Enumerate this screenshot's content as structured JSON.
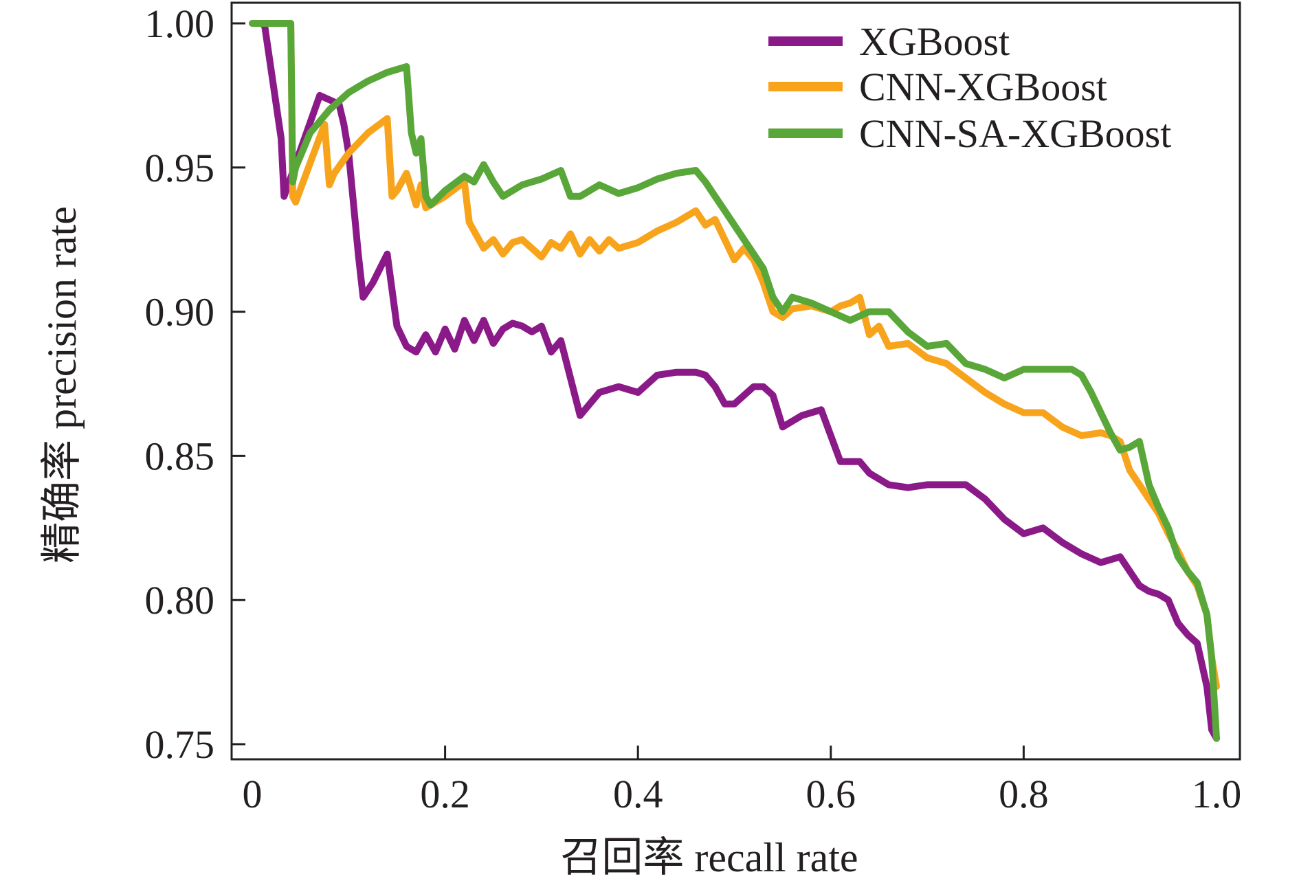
{
  "chart_data": {
    "type": "line",
    "title": "",
    "xlabel": "召回率 recall rate",
    "ylabel": "精确率 precision rate",
    "xlim": [
      0,
      1.0
    ],
    "ylim": [
      0.75,
      1.0
    ],
    "xticks": [
      0,
      0.2,
      0.4,
      0.6,
      0.8,
      1.0
    ],
    "xtick_labels": [
      "0",
      "0.2",
      "0.4",
      "0.6",
      "0.8",
      "1.0"
    ],
    "yticks": [
      0.75,
      0.8,
      0.85,
      0.9,
      0.95,
      1.0
    ],
    "ytick_labels": [
      "0.75",
      "0.80",
      "0.85",
      "0.90",
      "0.95",
      "1.00"
    ],
    "grid": false,
    "legend_position": "top-right",
    "series": [
      {
        "name": "XGBoost",
        "color": "#8b1a89",
        "x": [
          0.01,
          0.013,
          0.03,
          0.033,
          0.07,
          0.09,
          0.095,
          0.1,
          0.11,
          0.115,
          0.125,
          0.14,
          0.15,
          0.16,
          0.17,
          0.18,
          0.19,
          0.2,
          0.21,
          0.22,
          0.23,
          0.24,
          0.25,
          0.26,
          0.27,
          0.28,
          0.29,
          0.3,
          0.31,
          0.32,
          0.33,
          0.34,
          0.35,
          0.36,
          0.38,
          0.4,
          0.42,
          0.44,
          0.46,
          0.47,
          0.48,
          0.49,
          0.5,
          0.52,
          0.53,
          0.54,
          0.55,
          0.56,
          0.57,
          0.59,
          0.6,
          0.61,
          0.63,
          0.64,
          0.66,
          0.68,
          0.7,
          0.72,
          0.74,
          0.76,
          0.78,
          0.8,
          0.82,
          0.84,
          0.86,
          0.88,
          0.9,
          0.91,
          0.92,
          0.93,
          0.94,
          0.95,
          0.96,
          0.97,
          0.98,
          0.99,
          0.995,
          1.0
        ],
        "y": [
          1.0,
          0.999,
          0.96,
          0.94,
          0.975,
          0.972,
          0.965,
          0.955,
          0.92,
          0.905,
          0.91,
          0.92,
          0.895,
          0.888,
          0.886,
          0.892,
          0.886,
          0.894,
          0.887,
          0.897,
          0.89,
          0.897,
          0.889,
          0.894,
          0.896,
          0.895,
          0.893,
          0.895,
          0.886,
          0.89,
          0.877,
          0.864,
          0.868,
          0.872,
          0.874,
          0.872,
          0.878,
          0.879,
          0.879,
          0.878,
          0.874,
          0.868,
          0.868,
          0.874,
          0.874,
          0.871,
          0.86,
          0.862,
          0.864,
          0.866,
          0.857,
          0.848,
          0.848,
          0.844,
          0.84,
          0.839,
          0.84,
          0.84,
          0.84,
          0.835,
          0.828,
          0.823,
          0.825,
          0.82,
          0.816,
          0.813,
          0.815,
          0.81,
          0.805,
          0.803,
          0.802,
          0.8,
          0.792,
          0.788,
          0.785,
          0.77,
          0.755,
          0.752
        ]
      },
      {
        "name": "CNN-XGBoost",
        "color": "#f7a41c",
        "x": [
          0.0,
          0.04,
          0.042,
          0.045,
          0.075,
          0.08,
          0.085,
          0.1,
          0.12,
          0.14,
          0.145,
          0.15,
          0.16,
          0.17,
          0.175,
          0.18,
          0.2,
          0.22,
          0.225,
          0.23,
          0.24,
          0.25,
          0.26,
          0.27,
          0.28,
          0.29,
          0.3,
          0.31,
          0.32,
          0.33,
          0.34,
          0.35,
          0.36,
          0.37,
          0.38,
          0.4,
          0.42,
          0.44,
          0.46,
          0.47,
          0.48,
          0.49,
          0.5,
          0.51,
          0.52,
          0.53,
          0.54,
          0.55,
          0.56,
          0.58,
          0.6,
          0.61,
          0.62,
          0.63,
          0.64,
          0.65,
          0.66,
          0.68,
          0.7,
          0.72,
          0.74,
          0.76,
          0.78,
          0.8,
          0.82,
          0.84,
          0.86,
          0.88,
          0.89,
          0.9,
          0.91,
          0.92,
          0.93,
          0.94,
          0.95,
          0.96,
          0.97,
          0.98,
          0.99,
          0.995,
          1.0
        ],
        "y": [
          1.0,
          1.0,
          0.94,
          0.938,
          0.965,
          0.944,
          0.948,
          0.955,
          0.962,
          0.967,
          0.94,
          0.942,
          0.948,
          0.937,
          0.944,
          0.936,
          0.94,
          0.945,
          0.931,
          0.928,
          0.922,
          0.925,
          0.92,
          0.924,
          0.925,
          0.922,
          0.919,
          0.924,
          0.922,
          0.927,
          0.92,
          0.925,
          0.921,
          0.925,
          0.922,
          0.924,
          0.928,
          0.931,
          0.935,
          0.93,
          0.932,
          0.925,
          0.918,
          0.922,
          0.918,
          0.91,
          0.9,
          0.898,
          0.901,
          0.902,
          0.9,
          0.902,
          0.903,
          0.905,
          0.892,
          0.895,
          0.888,
          0.889,
          0.884,
          0.882,
          0.877,
          0.872,
          0.868,
          0.865,
          0.865,
          0.86,
          0.857,
          0.858,
          0.857,
          0.855,
          0.845,
          0.84,
          0.835,
          0.83,
          0.823,
          0.817,
          0.81,
          0.805,
          0.795,
          0.78,
          0.77
        ]
      },
      {
        "name": "CNN-SA-XGBoost",
        "color": "#59a639",
        "x": [
          0.0,
          0.04,
          0.042,
          0.045,
          0.06,
          0.08,
          0.1,
          0.12,
          0.14,
          0.16,
          0.165,
          0.17,
          0.175,
          0.18,
          0.185,
          0.2,
          0.22,
          0.23,
          0.24,
          0.25,
          0.26,
          0.28,
          0.3,
          0.32,
          0.33,
          0.34,
          0.36,
          0.38,
          0.4,
          0.42,
          0.44,
          0.46,
          0.47,
          0.48,
          0.49,
          0.5,
          0.51,
          0.52,
          0.53,
          0.54,
          0.55,
          0.56,
          0.58,
          0.6,
          0.62,
          0.64,
          0.66,
          0.68,
          0.7,
          0.72,
          0.74,
          0.76,
          0.78,
          0.8,
          0.82,
          0.84,
          0.85,
          0.86,
          0.87,
          0.88,
          0.89,
          0.9,
          0.91,
          0.92,
          0.93,
          0.94,
          0.95,
          0.96,
          0.97,
          0.98,
          0.99,
          0.995,
          1.0
        ],
        "y": [
          1.0,
          1.0,
          0.945,
          0.95,
          0.962,
          0.97,
          0.976,
          0.98,
          0.983,
          0.985,
          0.962,
          0.955,
          0.96,
          0.94,
          0.937,
          0.942,
          0.947,
          0.945,
          0.951,
          0.945,
          0.94,
          0.944,
          0.946,
          0.949,
          0.94,
          0.94,
          0.944,
          0.941,
          0.943,
          0.946,
          0.948,
          0.949,
          0.945,
          0.94,
          0.935,
          0.93,
          0.925,
          0.92,
          0.915,
          0.905,
          0.9,
          0.905,
          0.903,
          0.9,
          0.897,
          0.9,
          0.9,
          0.893,
          0.888,
          0.889,
          0.882,
          0.88,
          0.877,
          0.88,
          0.88,
          0.88,
          0.88,
          0.878,
          0.872,
          0.865,
          0.858,
          0.852,
          0.853,
          0.855,
          0.84,
          0.832,
          0.825,
          0.815,
          0.81,
          0.806,
          0.795,
          0.78,
          0.752
        ]
      }
    ]
  }
}
